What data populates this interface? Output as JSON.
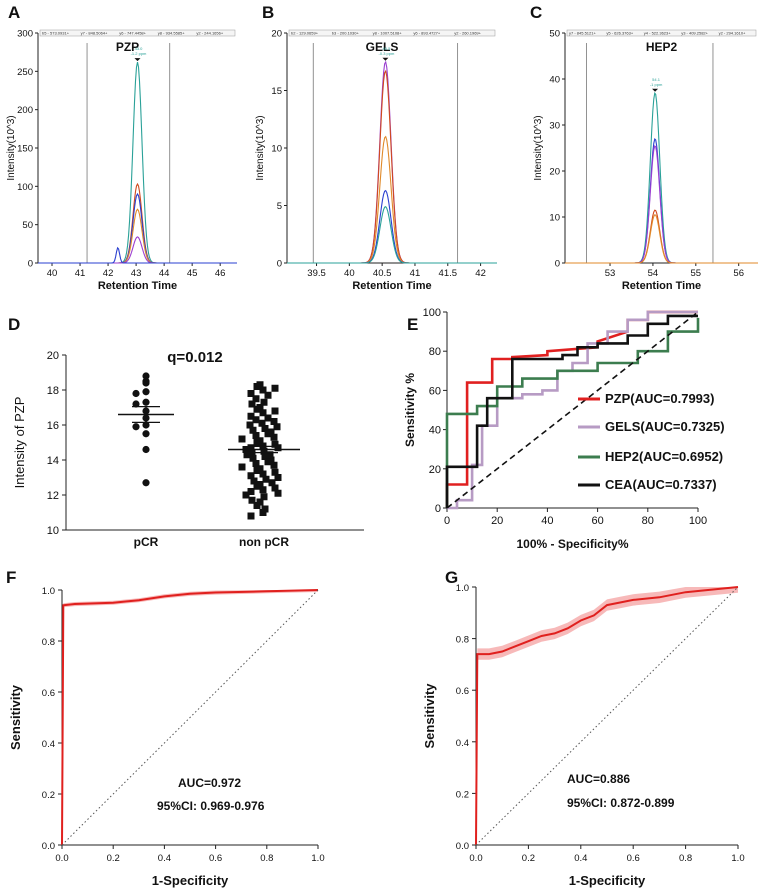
{
  "chart_data": [
    {
      "panel": "A",
      "type": "line",
      "title": "PZP",
      "xlabel": "Retention Time",
      "ylabel": "Intensity(10^3)",
      "xlim": [
        39.5,
        46.6
      ],
      "ylim": [
        0,
        300
      ],
      "xticks": [
        40,
        41,
        42,
        43,
        44,
        45,
        46
      ],
      "yticks": [
        0,
        50,
        100,
        150,
        200,
        250,
        300
      ],
      "window": [
        41.25,
        44.2
      ],
      "legend": [
        "b5 - 573.0931+",
        "y7 - 848.5064+",
        "y6 - 747.4458+",
        "y8 - 934.5585+",
        "y2 - 244.1656+"
      ],
      "peak_note": "43.0\n-1.2 ppm",
      "series": [
        {
          "name": "y2",
          "color": "#2aa198",
          "peak": 43.05,
          "height": 262,
          "width": 0.16
        },
        {
          "name": "y6",
          "color": "#d04a1e",
          "peak": 43.05,
          "height": 103,
          "width": 0.16
        },
        {
          "name": "b5",
          "color": "#2a3fd0",
          "peak": 43.05,
          "height": 90,
          "width": 0.16
        },
        {
          "name": "y8",
          "color": "#e08a2a",
          "peak": 43.05,
          "height": 70,
          "width": 0.16
        },
        {
          "name": "y7",
          "color": "#9b3fd0",
          "peak": 43.05,
          "height": 34,
          "width": 0.16
        },
        {
          "name": "b5 side",
          "color": "#2a3fd0",
          "peak": 42.35,
          "height": 20,
          "width": 0.06
        }
      ]
    },
    {
      "panel": "B",
      "type": "line",
      "title": "GELS",
      "xlabel": "Retention Time",
      "ylabel": "Intensity(10^3)",
      "xlim": [
        39.05,
        42.25
      ],
      "ylim": [
        0,
        20
      ],
      "xticks": [
        39.5,
        40,
        40.5,
        41,
        41.5,
        42
      ],
      "yticks": [
        0,
        5,
        10,
        15,
        20
      ],
      "window": [
        39.45,
        41.65
      ],
      "legend": [
        "b2 - 129.0659+",
        "b3 - 200.1030+",
        "y8 - 1007.5108+",
        "y6 - 893.4727+",
        "y2 - 260.1969+"
      ],
      "peak_note": "40.5\n-0.3 ppm",
      "series": [
        {
          "name": "b3",
          "color": "#9b3fd0",
          "peak": 40.55,
          "height": 17.5,
          "width": 0.085
        },
        {
          "name": "y8",
          "color": "#d04a1e",
          "peak": 40.55,
          "height": 16.7,
          "width": 0.085
        },
        {
          "name": "y6",
          "color": "#e08a2a",
          "peak": 40.55,
          "height": 11.0,
          "width": 0.085
        },
        {
          "name": "b2",
          "color": "#2a3fd0",
          "peak": 40.55,
          "height": 6.3,
          "width": 0.085
        },
        {
          "name": "y2",
          "color": "#2aa198",
          "peak": 40.55,
          "height": 4.9,
          "width": 0.085
        }
      ]
    },
    {
      "panel": "C",
      "type": "line",
      "title": "HEP2",
      "xlabel": "Retention Time",
      "ylabel": "Intensity(10^3)",
      "xlim": [
        51.95,
        56.45
      ],
      "ylim": [
        0,
        50
      ],
      "xticks": [
        53,
        54,
        55,
        56
      ],
      "yticks": [
        0,
        10,
        20,
        30,
        40,
        50
      ],
      "window": [
        52.45,
        55.4
      ],
      "legend": [
        "y7 - 845.5121+",
        "y5 - 626.3763+",
        "y4 - 522.3623+",
        "y3 - 409.2582+",
        "y2 - 294.1610+"
      ],
      "peak_note": "54.1\n-1 ppm",
      "series": [
        {
          "name": "y2",
          "color": "#2aa198",
          "peak": 54.05,
          "height": 37,
          "width": 0.11
        },
        {
          "name": "y7",
          "color": "#2a3fd0",
          "peak": 54.05,
          "height": 27,
          "width": 0.11
        },
        {
          "name": "y5",
          "color": "#9b3fd0",
          "peak": 54.05,
          "height": 25.5,
          "width": 0.11
        },
        {
          "name": "y4",
          "color": "#d04a1e",
          "peak": 54.05,
          "height": 11.5,
          "width": 0.11
        },
        {
          "name": "y3",
          "color": "#e08a2a",
          "peak": 54.05,
          "height": 10.5,
          "width": 0.11
        }
      ]
    },
    {
      "panel": "D",
      "type": "scatter",
      "title": "",
      "annotation": "q=0.012",
      "ylabel": "Intensity of PZP",
      "categories": [
        "pCR",
        "non pCR"
      ],
      "ylim": [
        10,
        20
      ],
      "yticks": [
        10,
        12,
        14,
        16,
        18,
        20
      ],
      "groups": [
        {
          "name": "pCR",
          "marker": "circle",
          "mean": 16.6,
          "sem": 0.45,
          "values": [
            18.8,
            18.5,
            18.4,
            17.9,
            17.8,
            17.3,
            17.2,
            16.8,
            16.4,
            16.0,
            15.9,
            15.5,
            14.6,
            12.7
          ]
        },
        {
          "name": "non pCR",
          "marker": "square",
          "mean": 14.6,
          "sem": 0.18,
          "values": [
            18.3,
            18.2,
            18.1,
            18.0,
            17.8,
            17.7,
            17.5,
            17.3,
            17.2,
            17.0,
            16.9,
            16.8,
            16.7,
            16.5,
            16.4,
            16.3,
            16.2,
            16.1,
            16.0,
            15.9,
            15.8,
            15.7,
            15.6,
            15.5,
            15.4,
            15.3,
            15.2,
            15.1,
            15.0,
            14.9,
            14.8,
            14.7,
            14.7,
            14.6,
            14.5,
            14.4,
            14.3,
            14.3,
            14.2,
            14.1,
            14.0,
            13.9,
            13.8,
            13.7,
            13.6,
            13.5,
            13.4,
            13.3,
            13.2,
            13.1,
            13.0,
            12.9,
            12.8,
            12.7,
            12.6,
            12.5,
            12.4,
            12.3,
            12.2,
            12.1,
            12.0,
            11.9,
            11.7,
            11.6,
            11.4,
            11.2,
            11.0,
            10.8
          ]
        }
      ]
    },
    {
      "panel": "E",
      "type": "line",
      "title": "",
      "xlabel": "100% - Specificity%",
      "ylabel": "Sensitivity %",
      "xlim": [
        0,
        100
      ],
      "ylim": [
        0,
        100
      ],
      "xticks": [
        0,
        20,
        40,
        60,
        80,
        100
      ],
      "yticks": [
        0,
        20,
        40,
        60,
        80,
        100
      ],
      "legend_position": "bottom-right",
      "series": [
        {
          "name": "PZP(AUC=0.7993)",
          "color": "#e02020",
          "points": [
            [
              0,
              0
            ],
            [
              0,
              12
            ],
            [
              8,
              12
            ],
            [
              8,
              64
            ],
            [
              12,
              64
            ],
            [
              12,
              64
            ],
            [
              18,
              64
            ],
            [
              18,
              76
            ],
            [
              26,
              76
            ],
            [
              26,
              77
            ],
            [
              40,
              78
            ],
            [
              40,
              80
            ],
            [
              60,
              82
            ],
            [
              60,
              85
            ],
            [
              72,
              90
            ],
            [
              72,
              96
            ],
            [
              80,
              96
            ],
            [
              80,
              100
            ],
            [
              100,
              100
            ]
          ]
        },
        {
          "name": "GELS(AUC=0.7325)",
          "color": "#b79bc4",
          "points": [
            [
              0,
              0
            ],
            [
              4,
              0
            ],
            [
              4,
              4
            ],
            [
              10,
              4
            ],
            [
              10,
              22
            ],
            [
              14,
              22
            ],
            [
              14,
              42
            ],
            [
              20,
              42
            ],
            [
              20,
              56
            ],
            [
              30,
              56
            ],
            [
              30,
              58
            ],
            [
              38,
              58
            ],
            [
              38,
              60
            ],
            [
              44,
              60
            ],
            [
              44,
              70
            ],
            [
              50,
              70
            ],
            [
              50,
              74
            ],
            [
              56,
              74
            ],
            [
              56,
              84
            ],
            [
              64,
              84
            ],
            [
              64,
              90
            ],
            [
              72,
              90
            ],
            [
              72,
              96
            ],
            [
              80,
              96
            ],
            [
              80,
              100
            ],
            [
              100,
              100
            ]
          ]
        },
        {
          "name": "HEP2(AUC=0.6952)",
          "color": "#3c7d4f",
          "points": [
            [
              0,
              0
            ],
            [
              0,
              48
            ],
            [
              12,
              48
            ],
            [
              12,
              52
            ],
            [
              20,
              52
            ],
            [
              20,
              62
            ],
            [
              30,
              62
            ],
            [
              30,
              66
            ],
            [
              44,
              66
            ],
            [
              44,
              70
            ],
            [
              60,
              70
            ],
            [
              60,
              74
            ],
            [
              76,
              74
            ],
            [
              76,
              80
            ],
            [
              88,
              80
            ],
            [
              88,
              90
            ],
            [
              100,
              90
            ],
            [
              100,
              97
            ]
          ]
        },
        {
          "name": "CEA(AUC=0.7337)",
          "color": "#111111",
          "points": [
            [
              0,
              0
            ],
            [
              0,
              21
            ],
            [
              12,
              21
            ],
            [
              12,
              42
            ],
            [
              16,
              42
            ],
            [
              16,
              56
            ],
            [
              26,
              56
            ],
            [
              26,
              76
            ],
            [
              46,
              76
            ],
            [
              46,
              78
            ],
            [
              52,
              78
            ],
            [
              52,
              82
            ],
            [
              60,
              82
            ],
            [
              60,
              84
            ],
            [
              72,
              84
            ],
            [
              72,
              88
            ],
            [
              80,
              88
            ],
            [
              80,
              94
            ],
            [
              88,
              94
            ],
            [
              88,
              98
            ],
            [
              100,
              98
            ]
          ]
        },
        {
          "name": "reference",
          "color": "#111111",
          "dashed": true,
          "points": [
            [
              0,
              0
            ],
            [
              100,
              100
            ]
          ]
        }
      ]
    },
    {
      "panel": "F",
      "type": "line",
      "title": "",
      "xlabel": "1-Specificity",
      "ylabel": "Sensitivity",
      "xlim": [
        0,
        1
      ],
      "ylim": [
        0,
        1
      ],
      "xticks": [
        0.0,
        0.2,
        0.4,
        0.6,
        0.8,
        1.0
      ],
      "yticks": [
        0.0,
        0.2,
        0.4,
        0.6,
        0.8,
        1.0
      ],
      "auc": "AUC=0.972",
      "ci": "95%CI: 0.969-0.976",
      "series": [
        {
          "name": "ROC",
          "color": "#e0201e",
          "points": [
            [
              0,
              0
            ],
            [
              0.005,
              0.94
            ],
            [
              0.05,
              0.945
            ],
            [
              0.2,
              0.95
            ],
            [
              0.3,
              0.96
            ],
            [
              0.4,
              0.975
            ],
            [
              0.5,
              0.985
            ],
            [
              0.6,
              0.99
            ],
            [
              0.8,
              0.995
            ],
            [
              1,
              1
            ]
          ]
        },
        {
          "name": "reference",
          "color": "#555555",
          "dotted": true,
          "points": [
            [
              0,
              0
            ],
            [
              1,
              1
            ]
          ]
        }
      ]
    },
    {
      "panel": "G",
      "type": "line",
      "title": "",
      "xlabel": "1-Specificity",
      "ylabel": "Sensitivity",
      "xlim": [
        0,
        1
      ],
      "ylim": [
        0,
        1
      ],
      "xticks": [
        0.0,
        0.2,
        0.4,
        0.6,
        0.8,
        1.0
      ],
      "yticks": [
        0.0,
        0.2,
        0.4,
        0.6,
        0.8,
        1.0
      ],
      "auc": "AUC=0.886",
      "ci": "95%CI: 0.872-0.899",
      "series": [
        {
          "name": "ROC",
          "color": "#e0201e",
          "points": [
            [
              0,
              0
            ],
            [
              0.005,
              0.74
            ],
            [
              0.05,
              0.74
            ],
            [
              0.1,
              0.75
            ],
            [
              0.15,
              0.77
            ],
            [
              0.2,
              0.79
            ],
            [
              0.25,
              0.81
            ],
            [
              0.3,
              0.82
            ],
            [
              0.35,
              0.84
            ],
            [
              0.4,
              0.87
            ],
            [
              0.45,
              0.89
            ],
            [
              0.5,
              0.93
            ],
            [
              0.55,
              0.94
            ],
            [
              0.6,
              0.95
            ],
            [
              0.7,
              0.96
            ],
            [
              0.8,
              0.98
            ],
            [
              0.9,
              0.99
            ],
            [
              1,
              1
            ]
          ]
        },
        {
          "name": "reference",
          "color": "#555555",
          "dotted": true,
          "points": [
            [
              0,
              0
            ],
            [
              1,
              1
            ]
          ]
        }
      ]
    }
  ]
}
